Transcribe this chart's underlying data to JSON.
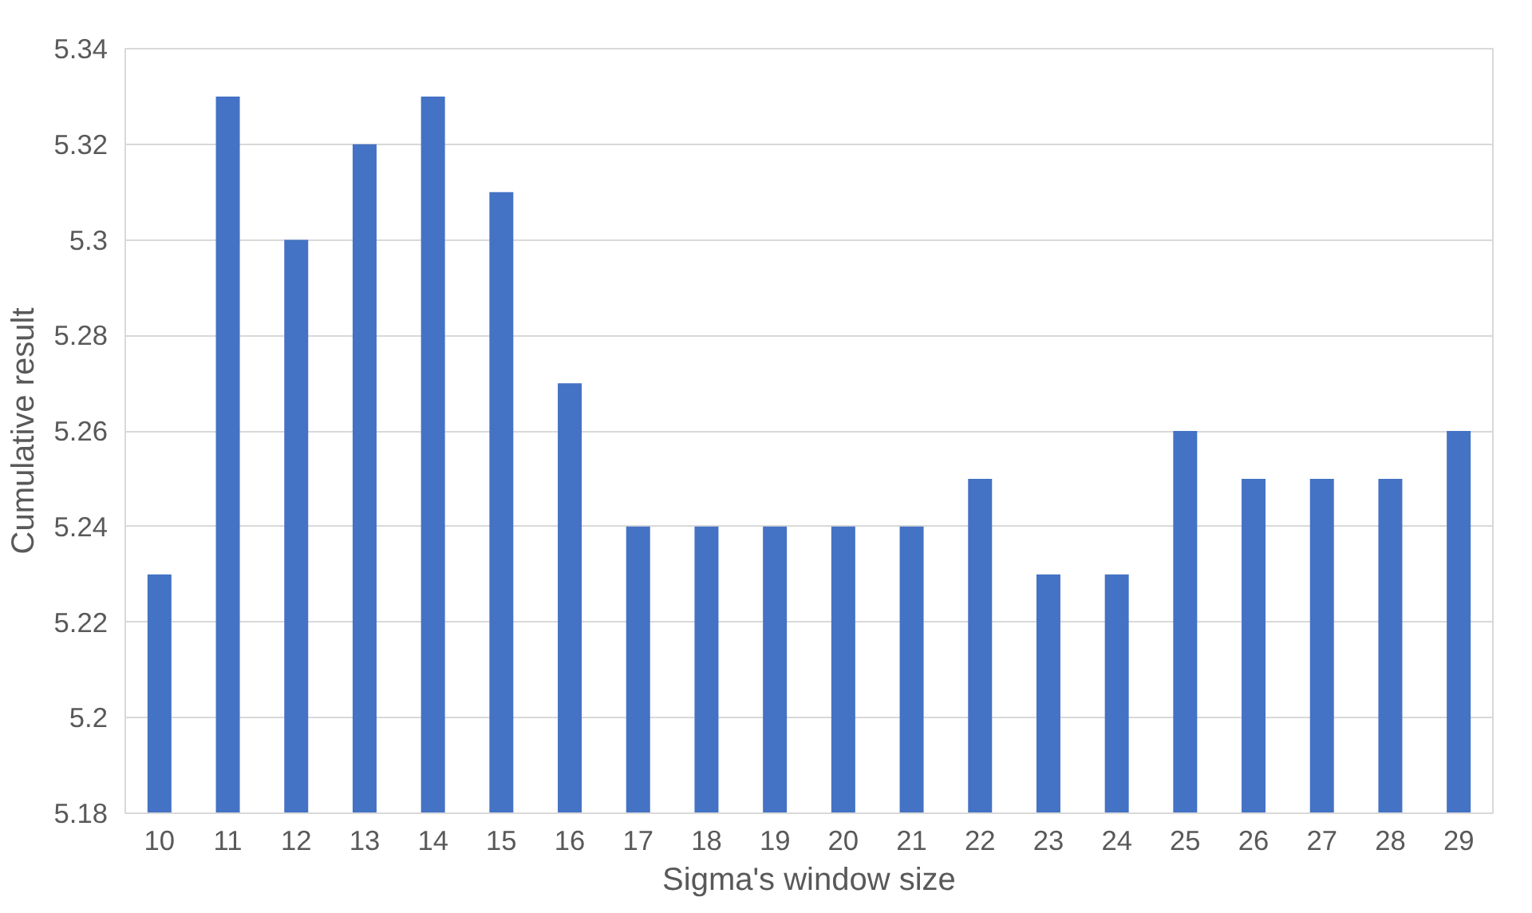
{
  "chart_data": {
    "type": "bar",
    "xlabel": "Sigma's window size",
    "ylabel": "Cumulative result",
    "categories": [
      "10",
      "11",
      "12",
      "13",
      "14",
      "15",
      "16",
      "17",
      "18",
      "19",
      "20",
      "21",
      "22",
      "23",
      "24",
      "25",
      "26",
      "27",
      "28",
      "29"
    ],
    "values": [
      5.23,
      5.33,
      5.3,
      5.32,
      5.33,
      5.31,
      5.27,
      5.24,
      5.24,
      5.24,
      5.24,
      5.24,
      5.25,
      5.23,
      5.23,
      5.26,
      5.25,
      5.25,
      5.25,
      5.26
    ],
    "color": "#4472c4",
    "ylim": [
      5.18,
      5.34
    ],
    "yticks": [
      5.18,
      5.2,
      5.22,
      5.24,
      5.26,
      5.28,
      5.3,
      5.32,
      5.34
    ],
    "grid": "y"
  }
}
